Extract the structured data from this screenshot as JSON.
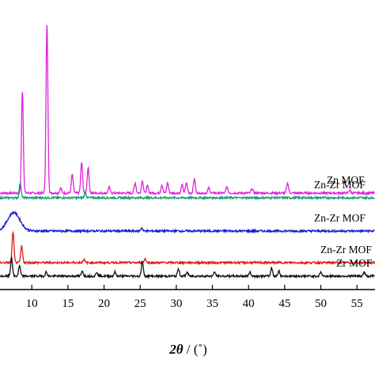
{
  "chart_data": {
    "type": "line",
    "xlabel_var": "2θ",
    "xlabel_unit": "/ (˚)",
    "xlim": [
      5.6,
      57.5
    ],
    "x_ticks": [
      "10",
      "15",
      "20",
      "25",
      "30",
      "35",
      "40",
      "45",
      "50",
      "55"
    ],
    "y_axis": "stacked, unlabeled intensity",
    "grid": false,
    "legend": "inline labels at right end of each trace",
    "series": [
      {
        "name": "Zn MOF",
        "color": "#e020e0",
        "baseline": 0.0,
        "peaks": [
          {
            "x": 8.7,
            "h": 1.0
          },
          {
            "x": 12.1,
            "h": 1.65
          },
          {
            "x": 14.0,
            "h": 0.05
          },
          {
            "x": 15.6,
            "h": 0.18
          },
          {
            "x": 16.9,
            "h": 0.3
          },
          {
            "x": 17.8,
            "h": 0.25
          },
          {
            "x": 20.7,
            "h": 0.06
          },
          {
            "x": 24.3,
            "h": 0.1
          },
          {
            "x": 25.3,
            "h": 0.12
          },
          {
            "x": 26.0,
            "h": 0.07
          },
          {
            "x": 28.0,
            "h": 0.08
          },
          {
            "x": 28.8,
            "h": 0.1
          },
          {
            "x": 30.8,
            "h": 0.08
          },
          {
            "x": 31.4,
            "h": 0.1
          },
          {
            "x": 32.5,
            "h": 0.14
          },
          {
            "x": 34.5,
            "h": 0.05
          },
          {
            "x": 37.0,
            "h": 0.06
          },
          {
            "x": 40.5,
            "h": 0.04
          },
          {
            "x": 45.4,
            "h": 0.1
          },
          {
            "x": 54.0,
            "h": 0.03
          }
        ]
      },
      {
        "name": "Zn-Zr MOF",
        "color": "#10a070",
        "baseline": 0.0,
        "peaks": [
          {
            "x": 8.4,
            "h": 0.15
          },
          {
            "x": 17.4,
            "h": 0.05
          }
        ]
      },
      {
        "name": "Zn-Zr MOF",
        "color": "#1818c8",
        "baseline": 0.0,
        "peaks": [
          {
            "x": 7.5,
            "h": 0.18,
            "w": 1.2
          },
          {
            "x": 25.2,
            "h": 0.03
          }
        ]
      },
      {
        "name": "Zn-Zr MOF",
        "color": "#e01818",
        "baseline": 0.0,
        "peaks": [
          {
            "x": 7.4,
            "h": 0.3
          },
          {
            "x": 8.6,
            "h": 0.16
          },
          {
            "x": 17.2,
            "h": 0.03
          },
          {
            "x": 25.7,
            "h": 0.04
          }
        ]
      },
      {
        "name": "Zr MOF",
        "color": "#101010",
        "baseline": 0.0,
        "peaks": [
          {
            "x": 7.2,
            "h": 0.18
          },
          {
            "x": 8.3,
            "h": 0.1
          },
          {
            "x": 12.0,
            "h": 0.04
          },
          {
            "x": 17.0,
            "h": 0.05
          },
          {
            "x": 19.0,
            "h": 0.04
          },
          {
            "x": 21.5,
            "h": 0.04
          },
          {
            "x": 25.3,
            "h": 0.14
          },
          {
            "x": 30.3,
            "h": 0.07
          },
          {
            "x": 31.5,
            "h": 0.04
          },
          {
            "x": 35.3,
            "h": 0.04
          },
          {
            "x": 40.2,
            "h": 0.04
          },
          {
            "x": 43.2,
            "h": 0.08
          },
          {
            "x": 44.2,
            "h": 0.05
          },
          {
            "x": 50.0,
            "h": 0.04
          },
          {
            "x": 56.0,
            "h": 0.04
          }
        ]
      }
    ]
  }
}
